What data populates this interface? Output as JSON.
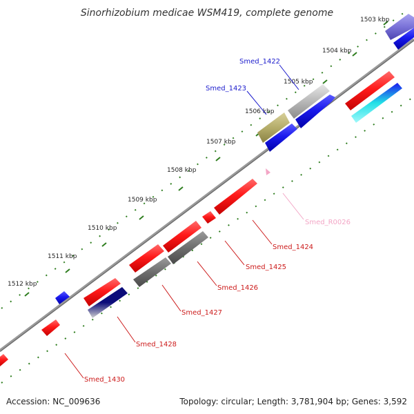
{
  "title": "Sinorhizobium medicae WSM419, complete genome",
  "footer": {
    "accession": "Accession: NC_009636",
    "summary": "Topology: circular; Length: 3,781,904 bp; Genes: 3,592"
  },
  "ticks": [
    "1503 kbp",
    "1504 kbp",
    "1505 kbp",
    "1506 kbp",
    "1507 kbp",
    "1508 kbp",
    "1509 kbp",
    "1510 kbp",
    "1511 kbp",
    "1512 kbp"
  ],
  "labels": {
    "smed_1422": "Smed_1422",
    "smed_1423": "Smed_1423",
    "smed_r0026": "Smed_R0026",
    "smed_1424": "Smed_1424",
    "smed_1425": "Smed_1425",
    "smed_1426": "Smed_1426",
    "smed_1427": "Smed_1427",
    "smed_1428": "Smed_1428",
    "smed_1430": "Smed_1430"
  },
  "colors": {
    "backbone": "#808080",
    "tick_dots": "#2e7d1e",
    "forward_label": "#1a1acc",
    "reverse_label": "#cc1a1a",
    "rna_label": "#f3a6c6",
    "gene_red": "#ff1a1a",
    "gene_blue": "#1a1aee",
    "gene_gray": "#9a9a9a",
    "gene_olive": "#b5ad6a",
    "gene_purple": "#7a72d8",
    "gene_cyan": "#22e0e6",
    "gene_navy": "#0c0c7a"
  }
}
